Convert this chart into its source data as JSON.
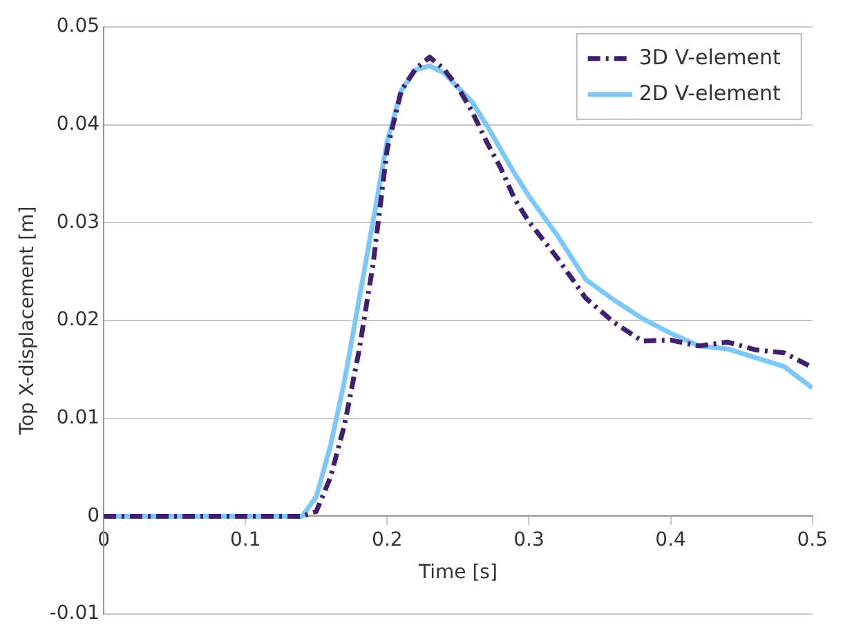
{
  "chart_data": {
    "type": "line",
    "xlabel": "Time [s]",
    "ylabel": "Top X-displacement [m]",
    "x": [
      0,
      0.05,
      0.1,
      0.14,
      0.15,
      0.16,
      0.17,
      0.18,
      0.19,
      0.2,
      0.21,
      0.22,
      0.23,
      0.24,
      0.25,
      0.26,
      0.27,
      0.28,
      0.29,
      0.3,
      0.32,
      0.34,
      0.36,
      0.38,
      0.4,
      0.42,
      0.44,
      0.46,
      0.48,
      0.5
    ],
    "series": [
      {
        "name": "3D V-element",
        "color": "#3f1f6e",
        "line_style": "dashed",
        "values": [
          0,
          0,
          0,
          0,
          0.0005,
          0.004,
          0.0094,
          0.0168,
          0.0257,
          0.0375,
          0.0435,
          0.0457,
          0.0469,
          0.0457,
          0.0438,
          0.0413,
          0.0383,
          0.0356,
          0.0324,
          0.0301,
          0.0264,
          0.0223,
          0.0198,
          0.0179,
          0.018,
          0.0174,
          0.0178,
          0.017,
          0.0167,
          0.0152
        ]
      },
      {
        "name": "2D V-element",
        "color": "#7ec8f8",
        "line_style": "solid",
        "values": [
          0,
          0,
          0,
          0,
          0.002,
          0.0072,
          0.0139,
          0.022,
          0.0301,
          0.0383,
          0.0435,
          0.0456,
          0.046,
          0.0453,
          0.0438,
          0.0423,
          0.04,
          0.0375,
          0.035,
          0.0327,
          0.0287,
          0.0242,
          0.0221,
          0.0202,
          0.0187,
          0.0174,
          0.0171,
          0.0162,
          0.0153,
          0.0131
        ]
      }
    ],
    "xlim": [
      0,
      0.5
    ],
    "xticks": [
      0,
      0.1,
      0.2,
      0.3,
      0.4,
      0.5
    ],
    "ylim": [
      -0.01,
      0.05
    ],
    "yticks": [
      -0.01,
      0,
      0.01,
      0.02,
      0.03,
      0.04,
      0.05
    ],
    "grid": "y",
    "legend": "top right",
    "marker": "none"
  }
}
